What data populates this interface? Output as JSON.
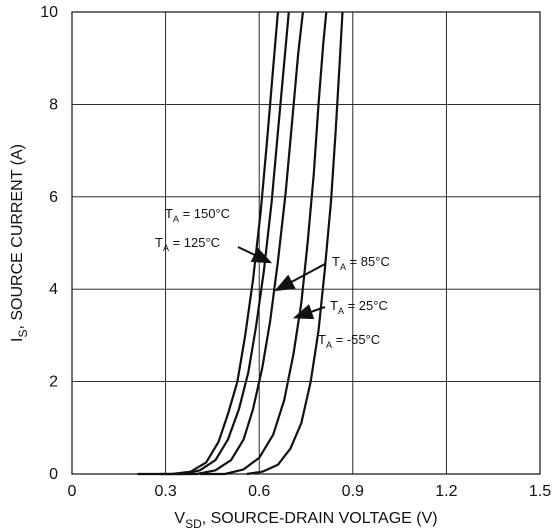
{
  "chart_data": {
    "type": "line",
    "xlabel": "V_SD, SOURCE-DRAIN VOLTAGE (V)",
    "ylabel": "I_S, SOURCE CURRENT (A)",
    "xlim": [
      0,
      1.5
    ],
    "ylim": [
      0,
      10
    ],
    "xticks": [
      "0",
      "0.3",
      "0.6",
      "0.9",
      "1.2",
      "1.5"
    ],
    "yticks": [
      "0",
      "2",
      "4",
      "6",
      "8",
      "10"
    ],
    "grid": true,
    "series": [
      {
        "name": "T_A = 150°C",
        "points": [
          [
            0.21,
            0.0
          ],
          [
            0.32,
            0.0
          ],
          [
            0.38,
            0.05
          ],
          [
            0.43,
            0.25
          ],
          [
            0.47,
            0.7
          ],
          [
            0.5,
            1.3
          ],
          [
            0.53,
            2.0
          ],
          [
            0.555,
            3.0
          ],
          [
            0.58,
            4.2
          ],
          [
            0.605,
            5.7
          ],
          [
            0.625,
            7.2
          ],
          [
            0.645,
            8.8
          ],
          [
            0.66,
            10.0
          ]
        ]
      },
      {
        "name": "T_A = 125°C",
        "points": [
          [
            0.28,
            0.0
          ],
          [
            0.36,
            0.0
          ],
          [
            0.41,
            0.08
          ],
          [
            0.46,
            0.3
          ],
          [
            0.5,
            0.75
          ],
          [
            0.535,
            1.4
          ],
          [
            0.565,
            2.2
          ],
          [
            0.59,
            3.2
          ],
          [
            0.615,
            4.4
          ],
          [
            0.64,
            5.9
          ],
          [
            0.66,
            7.4
          ],
          [
            0.68,
            8.9
          ],
          [
            0.695,
            10.0
          ]
        ]
      },
      {
        "name": "T_A = 85°C",
        "points": [
          [
            0.33,
            0.0
          ],
          [
            0.4,
            0.0
          ],
          [
            0.46,
            0.08
          ],
          [
            0.51,
            0.3
          ],
          [
            0.55,
            0.75
          ],
          [
            0.58,
            1.4
          ],
          [
            0.61,
            2.3
          ],
          [
            0.635,
            3.3
          ],
          [
            0.66,
            4.6
          ],
          [
            0.685,
            6.1
          ],
          [
            0.705,
            7.6
          ],
          [
            0.725,
            9.1
          ],
          [
            0.74,
            10.0
          ]
        ]
      },
      {
        "name": "T_A = 25°C",
        "points": [
          [
            0.41,
            0.0
          ],
          [
            0.49,
            0.0
          ],
          [
            0.55,
            0.1
          ],
          [
            0.6,
            0.35
          ],
          [
            0.645,
            0.85
          ],
          [
            0.68,
            1.6
          ],
          [
            0.71,
            2.6
          ],
          [
            0.735,
            3.7
          ],
          [
            0.755,
            5.0
          ],
          [
            0.775,
            6.5
          ],
          [
            0.79,
            8.0
          ],
          [
            0.805,
            9.3
          ],
          [
            0.815,
            10.0
          ]
        ]
      },
      {
        "name": "T_A = -55°C",
        "points": [
          [
            0.56,
            0.0
          ],
          [
            0.61,
            0.05
          ],
          [
            0.66,
            0.2
          ],
          [
            0.7,
            0.55
          ],
          [
            0.735,
            1.1
          ],
          [
            0.765,
            2.0
          ],
          [
            0.79,
            3.1
          ],
          [
            0.81,
            4.4
          ],
          [
            0.83,
            5.9
          ],
          [
            0.845,
            7.4
          ],
          [
            0.857,
            8.8
          ],
          [
            0.867,
            10.0
          ]
        ]
      }
    ],
    "annotations": [
      {
        "text": "T_A = 150°C",
        "arrow_to": [
          0.6,
          4.4
        ]
      },
      {
        "text": "T_A = 125°C",
        "arrow_to": [
          0.63,
          4.6
        ]
      },
      {
        "text": "T_A = 85°C",
        "arrow_to": [
          0.66,
          4.0
        ]
      },
      {
        "text": "T_A = 25°C",
        "arrow_to": [
          0.72,
          3.4
        ]
      },
      {
        "text": "T_A = -55°C",
        "arrow_to": null
      }
    ]
  }
}
